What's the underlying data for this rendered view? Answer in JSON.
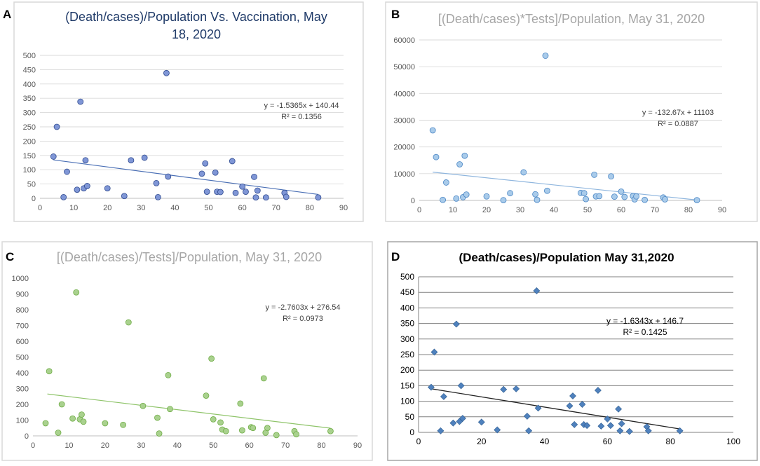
{
  "chart_data": [
    {
      "panel": "A",
      "type": "scatter",
      "title": "(Death/cases)/Population Vs. Vaccination, May 18, 2020",
      "title_lines": [
        "(Death/cases)/Population Vs. Vaccination, May",
        "18, 2020"
      ],
      "title_color": "#1f3a68",
      "xlim": [
        0,
        90
      ],
      "ylim": [
        0,
        500
      ],
      "xticks": [
        0,
        10,
        20,
        30,
        40,
        50,
        60,
        70,
        80,
        90
      ],
      "yticks": [
        0,
        50,
        100,
        150,
        200,
        250,
        300,
        350,
        400,
        450,
        500
      ],
      "marker_color": "#7f96d6",
      "marker_stroke": "#2f4a8f",
      "marker": "circle",
      "trend_color": "#4a6fb5",
      "equation": "y = -1.5365x + 140.44",
      "r2": "R² = 0.1356",
      "trend": {
        "slope": -1.5365,
        "intercept": 140.44,
        "x0": 4,
        "x1": 82.5
      },
      "points": [
        [
          4,
          146
        ],
        [
          5,
          250
        ],
        [
          7,
          4
        ],
        [
          8,
          93
        ],
        [
          11,
          30
        ],
        [
          12,
          338
        ],
        [
          13,
          35
        ],
        [
          13.5,
          133
        ],
        [
          14,
          43
        ],
        [
          20,
          35
        ],
        [
          25,
          8
        ],
        [
          27,
          133
        ],
        [
          31,
          142
        ],
        [
          34.5,
          53
        ],
        [
          35,
          4
        ],
        [
          37.5,
          438
        ],
        [
          38,
          76
        ],
        [
          48,
          86
        ],
        [
          49,
          122
        ],
        [
          49.5,
          23
        ],
        [
          52,
          90
        ],
        [
          52.5,
          23
        ],
        [
          53.5,
          22
        ],
        [
          57,
          130
        ],
        [
          58,
          19
        ],
        [
          60,
          41
        ],
        [
          61,
          23
        ],
        [
          63.5,
          75
        ],
        [
          64,
          3
        ],
        [
          64.5,
          27
        ],
        [
          67,
          3
        ],
        [
          72.5,
          19
        ],
        [
          73,
          5
        ],
        [
          82.5,
          3
        ]
      ]
    },
    {
      "panel": "B",
      "type": "scatter",
      "title": "[(Death/cases)*Tests]/Population, May 31, 2020",
      "title_lines": [
        "[(Death/cases)*Tests]/Population, May 31, 2020"
      ],
      "title_color": "#a6a6a6",
      "xlim": [
        0,
        90
      ],
      "ylim": [
        0,
        60000
      ],
      "xticks": [
        0,
        10,
        20,
        30,
        40,
        50,
        60,
        70,
        80,
        90
      ],
      "yticks": [
        0,
        10000,
        20000,
        30000,
        40000,
        50000,
        60000
      ],
      "marker_color": "#a9cbea",
      "marker_stroke": "#4a86c5",
      "marker": "circle",
      "trend_color": "#8fb6de",
      "equation": "y = -132.67x + 11103",
      "r2": "R² = 0.0887",
      "trend": {
        "slope": -132.67,
        "intercept": 11103,
        "x0": 4,
        "x1": 82.5
      },
      "points": [
        [
          4,
          26200
        ],
        [
          5,
          16200
        ],
        [
          7,
          200
        ],
        [
          8,
          6700
        ],
        [
          11,
          700
        ],
        [
          12,
          13500
        ],
        [
          13,
          1200
        ],
        [
          13.5,
          16700
        ],
        [
          14,
          2200
        ],
        [
          20,
          1500
        ],
        [
          25,
          100
        ],
        [
          27,
          2700
        ],
        [
          31,
          10500
        ],
        [
          34.5,
          2300
        ],
        [
          35,
          200
        ],
        [
          37.5,
          54100
        ],
        [
          38,
          3600
        ],
        [
          48,
          2800
        ],
        [
          49,
          2700
        ],
        [
          49.5,
          500
        ],
        [
          52,
          9600
        ],
        [
          52.5,
          1500
        ],
        [
          53.5,
          1600
        ],
        [
          57,
          9000
        ],
        [
          58,
          1400
        ],
        [
          60,
          3300
        ],
        [
          61,
          1300
        ],
        [
          63.5,
          1600
        ],
        [
          64,
          400
        ],
        [
          64.5,
          1500
        ],
        [
          67,
          200
        ],
        [
          72.5,
          1100
        ],
        [
          73,
          400
        ],
        [
          82.5,
          100
        ]
      ]
    },
    {
      "panel": "C",
      "type": "scatter",
      "title": "[(Death/cases)/Tests]/Population, May 31, 2020",
      "title_lines": [
        "[(Death/cases)/Tests]/Population, May 31, 2020"
      ],
      "title_color": "#a6a6a6",
      "xlim": [
        0,
        90
      ],
      "ylim": [
        0,
        1000
      ],
      "xticks": [
        0,
        10,
        20,
        30,
        40,
        50,
        60,
        70,
        80,
        90
      ],
      "yticks": [
        0,
        100,
        200,
        300,
        400,
        500,
        600,
        700,
        800,
        900,
        1000
      ],
      "marker_color": "#a9d18e",
      "marker_stroke": "#70ad47",
      "marker": "circle",
      "trend_color": "#8fc46a",
      "equation": "y = -2.7603x + 276.54",
      "r2": "R² = 0.0973",
      "trend": {
        "slope": -2.7603,
        "intercept": 276.54,
        "x0": 4,
        "x1": 82.5
      },
      "points": [
        [
          3.5,
          80
        ],
        [
          4.5,
          410
        ],
        [
          7,
          20
        ],
        [
          8,
          200
        ],
        [
          11,
          110
        ],
        [
          12,
          910
        ],
        [
          13,
          105
        ],
        [
          13.5,
          135
        ],
        [
          14,
          90
        ],
        [
          20,
          80
        ],
        [
          25,
          70
        ],
        [
          26.5,
          720
        ],
        [
          30.5,
          190
        ],
        [
          34.5,
          115
        ],
        [
          35,
          15
        ],
        [
          37.5,
          385
        ],
        [
          38,
          170
        ],
        [
          48,
          255
        ],
        [
          49.5,
          490
        ],
        [
          50,
          105
        ],
        [
          52,
          85
        ],
        [
          52.5,
          40
        ],
        [
          53.5,
          30
        ],
        [
          57.5,
          205
        ],
        [
          58,
          35
        ],
        [
          60.5,
          55
        ],
        [
          61,
          50
        ],
        [
          64,
          365
        ],
        [
          64.5,
          20
        ],
        [
          65,
          50
        ],
        [
          67.5,
          5
        ],
        [
          72.5,
          30
        ],
        [
          73,
          10
        ],
        [
          82.5,
          30
        ]
      ]
    },
    {
      "panel": "D",
      "type": "scatter",
      "title": "(Death/cases)/Population May 31,2020",
      "title_lines": [
        "(Death/cases)/Population May 31,2020"
      ],
      "title_color": "#000000",
      "xlim": [
        0,
        100
      ],
      "ylim": [
        0,
        500
      ],
      "xticks": [
        0,
        20,
        40,
        60,
        80,
        100
      ],
      "yticks": [
        0,
        50,
        100,
        150,
        200,
        250,
        300,
        350,
        400,
        450,
        500
      ],
      "marker_color": "#4f81bd",
      "marker_stroke": "#2f5d8f",
      "marker": "diamond",
      "trend_color": "#222222",
      "equation": "y = -1.6343x + 146.7",
      "r2": "R² = 0.1425",
      "trend": {
        "slope": -1.6343,
        "intercept": 146.7,
        "x0": 4,
        "x1": 83
      },
      "points": [
        [
          4,
          145
        ],
        [
          5,
          258
        ],
        [
          7,
          5
        ],
        [
          8,
          115
        ],
        [
          11,
          30
        ],
        [
          12,
          348
        ],
        [
          13,
          35
        ],
        [
          13.5,
          150
        ],
        [
          14,
          45
        ],
        [
          20,
          33
        ],
        [
          25,
          8
        ],
        [
          27,
          138
        ],
        [
          31,
          140
        ],
        [
          34.5,
          52
        ],
        [
          35,
          5
        ],
        [
          37.5,
          455
        ],
        [
          38,
          78
        ],
        [
          48,
          85
        ],
        [
          49,
          117
        ],
        [
          49.5,
          25
        ],
        [
          52,
          90
        ],
        [
          52.5,
          25
        ],
        [
          53.5,
          22
        ],
        [
          57,
          135
        ],
        [
          58,
          20
        ],
        [
          60,
          43
        ],
        [
          61,
          22
        ],
        [
          63.5,
          75
        ],
        [
          64,
          5
        ],
        [
          64.5,
          28
        ],
        [
          67,
          3
        ],
        [
          72.5,
          18
        ],
        [
          73,
          5
        ],
        [
          83,
          5
        ]
      ]
    }
  ],
  "panel_labels": [
    "A",
    "B",
    "C",
    "D"
  ]
}
